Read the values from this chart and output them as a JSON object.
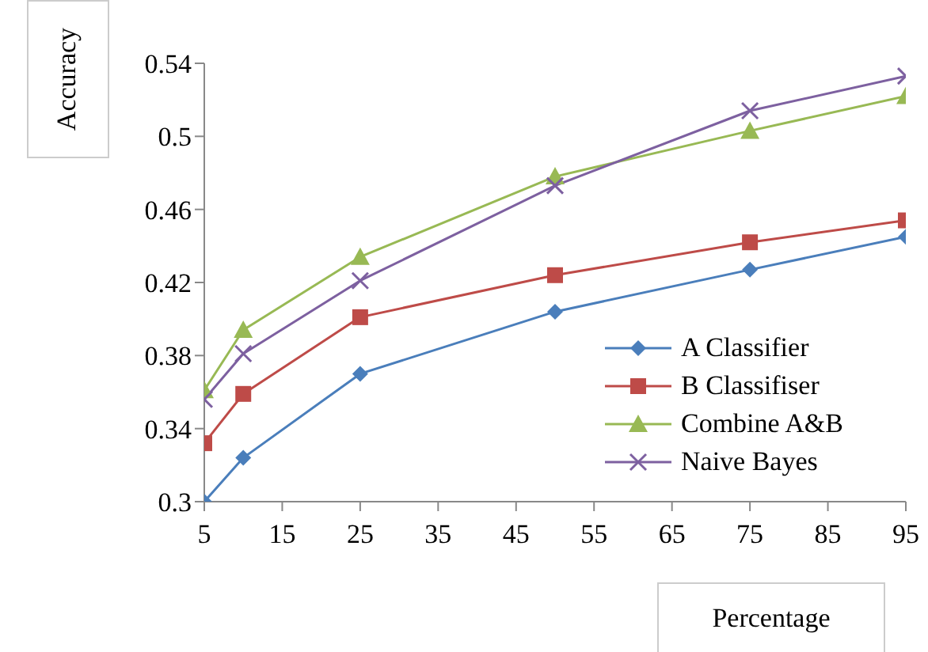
{
  "chart_data": {
    "type": "line",
    "xlabel": "Percentage",
    "ylabel": "Accuracy",
    "x": [
      5,
      10,
      25,
      50,
      75,
      95
    ],
    "series": [
      {
        "name": "A Classifier",
        "color": "#4a7ebb",
        "marker": "diamond",
        "values": [
          0.3,
          0.324,
          0.37,
          0.404,
          0.427,
          0.445
        ]
      },
      {
        "name": "B Classifiser",
        "color": "#be4b48",
        "marker": "square",
        "values": [
          0.332,
          0.359,
          0.401,
          0.424,
          0.442,
          0.454
        ]
      },
      {
        "name": "Combine A&B",
        "color": "#98b954",
        "marker": "triangle",
        "values": [
          0.361,
          0.394,
          0.434,
          0.478,
          0.503,
          0.522
        ]
      },
      {
        "name": "Naive Bayes",
        "color": "#7d60a0",
        "marker": "cross",
        "values": [
          0.356,
          0.381,
          0.421,
          0.473,
          0.514,
          0.533
        ]
      }
    ],
    "xlim": [
      5,
      95
    ],
    "xticks": [
      5,
      15,
      25,
      35,
      45,
      55,
      65,
      75,
      85,
      95
    ],
    "ylim": [
      0.3,
      0.54
    ],
    "yticks": [
      0.3,
      0.34,
      0.38,
      0.42,
      0.46,
      0.5,
      0.54
    ],
    "grid": false,
    "legend": "bottom right",
    "line_style": "solid"
  }
}
